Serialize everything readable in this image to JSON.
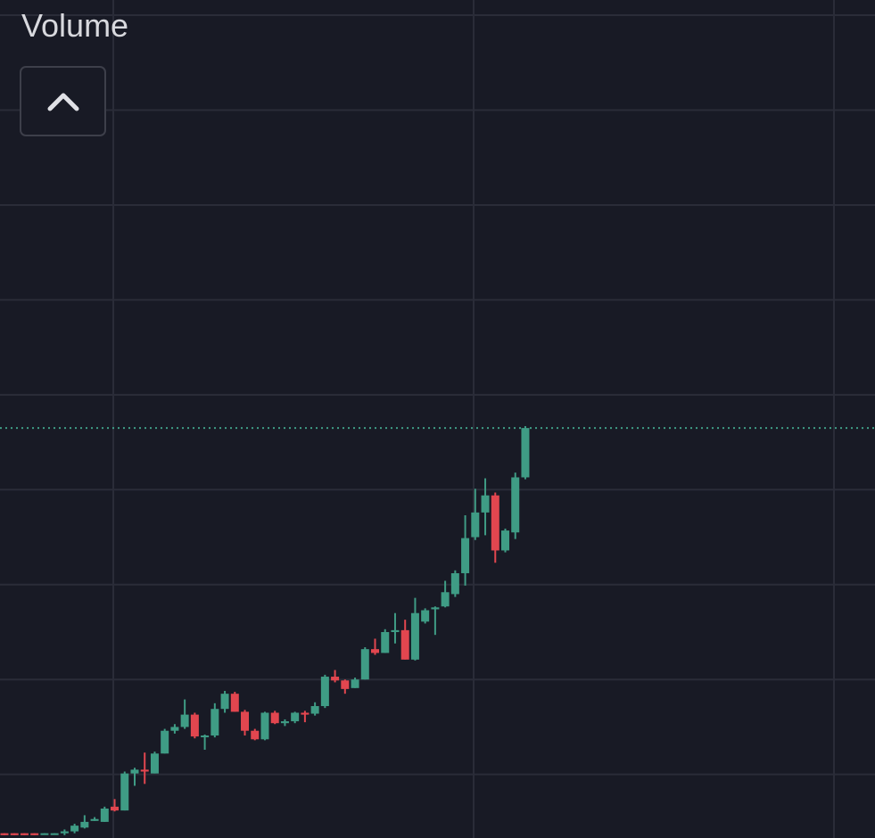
{
  "header": {
    "title": "Volume"
  },
  "chart_data": {
    "type": "candlestick",
    "open": [
      3.8,
      3.8,
      3.8,
      3.8,
      3.7,
      3.7,
      3.8,
      4.0,
      4.4,
      5.1,
      5.0,
      6.6,
      6.2,
      10.1,
      10.5,
      10.1,
      12.2,
      14.6,
      15.0,
      16.3,
      14.0,
      14.1,
      16.9,
      18.5,
      16.6,
      14.6,
      13.7,
      16.5,
      15.4,
      15.6,
      16.5,
      16.4,
      17.2,
      20.3,
      19.9,
      19.1,
      20.0,
      23.2,
      22.8,
      25.0,
      25.2,
      22.1,
      26.1,
      27.4,
      27.7,
      29.0,
      31.2,
      35.0,
      37.6,
      39.4,
      33.6,
      35.5,
      41.3
    ],
    "high": [
      3.8,
      3.8,
      3.8,
      3.8,
      3.8,
      3.8,
      4.2,
      4.8,
      5.7,
      5.5,
      6.6,
      7.4,
      10.3,
      10.7,
      12.3,
      12.4,
      14.8,
      15.3,
      17.9,
      16.5,
      14.2,
      17.5,
      18.8,
      18.7,
      16.8,
      14.8,
      16.6,
      16.7,
      15.8,
      16.6,
      16.7,
      17.6,
      20.5,
      21.0,
      20.0,
      20.2,
      23.4,
      24.3,
      25.3,
      27.0,
      26.3,
      28.6,
      27.5,
      27.7,
      30.4,
      31.5,
      37.3,
      40.1,
      41.2,
      39.7,
      35.9,
      41.8,
      46.7
    ],
    "low": [
      3.6,
      3.6,
      3.6,
      3.6,
      3.7,
      3.7,
      3.6,
      3.8,
      4.3,
      5.1,
      5.0,
      6.1,
      6.2,
      8.8,
      9.0,
      10.1,
      12.2,
      14.3,
      14.8,
      13.8,
      12.6,
      13.9,
      16.5,
      16.6,
      14.1,
      13.6,
      13.6,
      15.3,
      15.1,
      15.4,
      15.5,
      16.2,
      17.0,
      19.7,
      18.5,
      19.1,
      20.0,
      22.6,
      22.8,
      23.8,
      22.1,
      22.0,
      25.9,
      24.7,
      27.6,
      28.7,
      29.9,
      34.7,
      35.2,
      32.3,
      33.4,
      34.8,
      41.1
    ],
    "close": [
      3.6,
      3.6,
      3.6,
      3.6,
      3.8,
      3.8,
      4.0,
      4.6,
      5.0,
      5.3,
      6.4,
      6.2,
      10.1,
      10.5,
      10.3,
      12.2,
      14.6,
      15.0,
      16.3,
      14.0,
      14.1,
      16.9,
      18.5,
      16.6,
      14.6,
      13.7,
      16.5,
      15.4,
      15.6,
      16.5,
      16.3,
      17.2,
      20.3,
      19.9,
      19.0,
      20.0,
      23.2,
      22.8,
      25.0,
      25.2,
      22.1,
      27.0,
      27.3,
      27.6,
      29.2,
      31.2,
      34.9,
      37.6,
      39.4,
      33.6,
      35.7,
      41.3,
      46.5
    ],
    "up_color": "#3f9c85",
    "down_color": "#e2464f",
    "ylim": [
      3.3,
      91.6
    ],
    "yticks": [
      10,
      20,
      30,
      40,
      50,
      60,
      70,
      80,
      90
    ],
    "grid": true
  }
}
